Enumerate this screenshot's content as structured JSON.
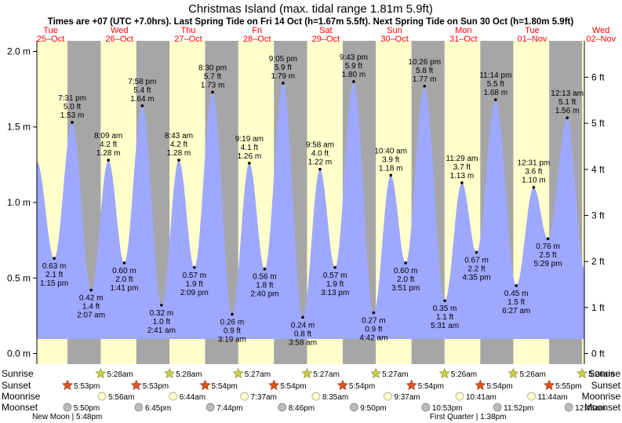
{
  "chart_data": {
    "type": "area",
    "title": "Christmas Island (max. tidal range 1.81m 5.9ft)",
    "subtitle": "Times are +07 (UTC +7.0hrs). Last Spring Tide on Fri 14 Oct (h=1.67m 5.5ft). Next Spring Tide on Sun 30 Oct (h=1.80m 5.9ft)",
    "ylim": [
      -0.07,
      2.07
    ],
    "left_ticks": [
      "0.0 m",
      "0.5 m",
      "1.0 m",
      "1.5 m",
      "2.0 m"
    ],
    "left_tick_values": [
      0,
      0.5,
      1.0,
      1.5,
      2.0
    ],
    "right_ticks": [
      "0 ft",
      "1 ft",
      "2 ft",
      "3 ft",
      "4 ft",
      "5 ft",
      "6 ft"
    ],
    "right_tick_values": [
      0,
      1,
      2,
      3,
      4,
      5,
      6
    ],
    "x_start_hour": 7.2,
    "x_end_hour": 198.2,
    "days": [
      {
        "dow": "Tue",
        "date": "25–Oct"
      },
      {
        "dow": "Wed",
        "date": "26–Oct"
      },
      {
        "dow": "Thu",
        "date": "27–Oct"
      },
      {
        "dow": "Fri",
        "date": "28–Oct"
      },
      {
        "dow": "Sat",
        "date": "29–Oct"
      },
      {
        "dow": "Sun",
        "date": "30–Oct"
      },
      {
        "dow": "Mon",
        "date": "31–Oct"
      },
      {
        "dow": "Tue",
        "date": "01–Nov"
      },
      {
        "dow": "Wed",
        "date": "02–Nov"
      }
    ],
    "curve_start": {
      "hour": 7.2,
      "m": 1.27
    },
    "curve_end": {
      "hour": 198.2,
      "m": 0.56
    },
    "tides": [
      {
        "hour": 13.25,
        "m": 0.63,
        "time": "1:15 pm",
        "ft": "2.1 ft",
        "mlabel": "0.63 m",
        "type": "low"
      },
      {
        "hour": 19.52,
        "m": 1.53,
        "time": "7:31 pm",
        "ft": "5.0 ft",
        "mlabel": "1.53 m",
        "type": "high"
      },
      {
        "hour": 26.12,
        "m": 0.42,
        "time": "2:07 am",
        "ft": "1.4 ft",
        "mlabel": "0.42 m",
        "type": "low"
      },
      {
        "hour": 32.15,
        "m": 1.28,
        "time": "8:09 am",
        "ft": "4.2 ft",
        "mlabel": "1.28 m",
        "type": "high"
      },
      {
        "hour": 37.68,
        "m": 0.6,
        "time": "1:41 pm",
        "ft": "2.0 ft",
        "mlabel": "0.60 m",
        "type": "low"
      },
      {
        "hour": 43.97,
        "m": 1.64,
        "time": "7:58 pm",
        "ft": "5.4 ft",
        "mlabel": "1.64 m",
        "type": "high"
      },
      {
        "hour": 50.68,
        "m": 0.32,
        "time": "2:41 am",
        "ft": "1.0 ft",
        "mlabel": "0.32 m",
        "type": "low"
      },
      {
        "hour": 56.72,
        "m": 1.28,
        "time": "8:43 am",
        "ft": "4.2 ft",
        "mlabel": "1.28 m",
        "type": "high"
      },
      {
        "hour": 62.15,
        "m": 0.57,
        "time": "2:09 pm",
        "ft": "1.9 ft",
        "mlabel": "0.57 m",
        "type": "low"
      },
      {
        "hour": 68.5,
        "m": 1.73,
        "time": "8:30 pm",
        "ft": "5.7 ft",
        "mlabel": "1.73 m",
        "type": "high"
      },
      {
        "hour": 75.32,
        "m": 0.26,
        "time": "3:19 am",
        "ft": "0.9 ft",
        "mlabel": "0.26 m",
        "type": "low"
      },
      {
        "hour": 81.32,
        "m": 1.26,
        "time": "9:19 am",
        "ft": "4.1 ft",
        "mlabel": "1.26 m",
        "type": "high"
      },
      {
        "hour": 86.67,
        "m": 0.56,
        "time": "2:40 pm",
        "ft": "1.8 ft",
        "mlabel": "0.56 m",
        "type": "low"
      },
      {
        "hour": 93.08,
        "m": 1.79,
        "time": "9:05 pm",
        "ft": "5.9 ft",
        "mlabel": "1.79 m",
        "type": "high"
      },
      {
        "hour": 99.97,
        "m": 0.24,
        "time": "3:58 am",
        "ft": "0.8 ft",
        "mlabel": "0.24 m",
        "type": "low"
      },
      {
        "hour": 105.97,
        "m": 1.22,
        "time": "9:58 am",
        "ft": "4.0 ft",
        "mlabel": "1.22 m",
        "type": "high"
      },
      {
        "hour": 111.22,
        "m": 0.57,
        "time": "3:13 pm",
        "ft": "1.9 ft",
        "mlabel": "0.57 m",
        "type": "low"
      },
      {
        "hour": 117.72,
        "m": 1.8,
        "time": "9:43 pm",
        "ft": "5.9 ft",
        "mlabel": "1.80 m",
        "type": "high"
      },
      {
        "hour": 124.7,
        "m": 0.27,
        "time": "4:42 am",
        "ft": "0.9 ft",
        "mlabel": "0.27 m",
        "type": "low"
      },
      {
        "hour": 130.67,
        "m": 1.18,
        "time": "10:40 am",
        "ft": "3.9 ft",
        "mlabel": "1.18 m",
        "type": "high"
      },
      {
        "hour": 135.85,
        "m": 0.6,
        "time": "3:51 pm",
        "ft": "2.0 ft",
        "mlabel": "0.60 m",
        "type": "low"
      },
      {
        "hour": 142.43,
        "m": 1.77,
        "time": "10:26 pm",
        "ft": "5.8 ft",
        "mlabel": "1.77 m",
        "type": "high"
      },
      {
        "hour": 149.52,
        "m": 0.35,
        "time": "5:31 am",
        "ft": "1.1 ft",
        "mlabel": "0.35 m",
        "type": "low"
      },
      {
        "hour": 155.48,
        "m": 1.13,
        "time": "11:29 am",
        "ft": "3.7 ft",
        "mlabel": "1.13 m",
        "type": "high"
      },
      {
        "hour": 160.58,
        "m": 0.67,
        "time": "4:35 pm",
        "ft": "2.2 ft",
        "mlabel": "0.67 m",
        "type": "low"
      },
      {
        "hour": 167.23,
        "m": 1.68,
        "time": "11:14 pm",
        "ft": "5.5 ft",
        "mlabel": "1.68 m",
        "type": "high"
      },
      {
        "hour": 174.45,
        "m": 0.45,
        "time": "6:27 am",
        "ft": "1.5 ft",
        "mlabel": "0.45 m",
        "type": "low"
      },
      {
        "hour": 180.52,
        "m": 1.1,
        "time": "12:31 pm",
        "ft": "3.6 ft",
        "mlabel": "1.10 m",
        "type": "high"
      },
      {
        "hour": 185.48,
        "m": 0.76,
        "time": "5:29 pm",
        "ft": "2.5 ft",
        "mlabel": "0.76 m",
        "type": "low"
      },
      {
        "hour": 192.22,
        "m": 1.56,
        "time": "12:13 am",
        "ft": "5.1 ft",
        "mlabel": "1.56 m",
        "type": "high"
      }
    ],
    "row_labels": {
      "sunrise": "Sunrise",
      "sunset": "Sunset",
      "moonrise": "Moonrise",
      "moonset": "Moonset"
    },
    "sunrise": [
      {
        "hour": 29.47,
        "label": "5:28am"
      },
      {
        "hour": 53.47,
        "label": "5:28am"
      },
      {
        "hour": 77.45,
        "label": "5:27am"
      },
      {
        "hour": 101.45,
        "label": "5:27am"
      },
      {
        "hour": 125.45,
        "label": "5:27am"
      },
      {
        "hour": 149.43,
        "label": "5:26am"
      },
      {
        "hour": 173.43,
        "label": "5:26am"
      },
      {
        "hour": 197.43,
        "label": "5:26am"
      }
    ],
    "sunset": [
      {
        "hour": 17.88,
        "label": "5:53pm"
      },
      {
        "hour": 41.88,
        "label": "5:53pm"
      },
      {
        "hour": 65.9,
        "label": "5:54pm"
      },
      {
        "hour": 89.9,
        "label": "5:54pm"
      },
      {
        "hour": 113.9,
        "label": "5:54pm"
      },
      {
        "hour": 137.9,
        "label": "5:54pm"
      },
      {
        "hour": 161.9,
        "label": "5:54pm"
      },
      {
        "hour": 185.92,
        "label": "5:55pm"
      }
    ],
    "moonrise": [
      {
        "hour": 29.93,
        "label": "5:56am"
      },
      {
        "hour": 54.73,
        "label": "6:44am"
      },
      {
        "hour": 79.62,
        "label": "7:37am"
      },
      {
        "hour": 104.58,
        "label": "8:35am"
      },
      {
        "hour": 129.62,
        "label": "9:37am"
      },
      {
        "hour": 154.68,
        "label": "10:41am"
      },
      {
        "hour": 179.73,
        "label": "11:44am"
      }
    ],
    "moonset": [
      {
        "hour": 17.83,
        "label": "5:50pm"
      },
      {
        "hour": 42.75,
        "label": "6:45pm"
      },
      {
        "hour": 67.73,
        "label": "7:44pm"
      },
      {
        "hour": 92.77,
        "label": "8:46pm"
      },
      {
        "hour": 117.83,
        "label": "9:50pm"
      },
      {
        "hour": 142.88,
        "label": "10:53pm"
      },
      {
        "hour": 167.87,
        "label": "11:52pm"
      },
      {
        "hour": 192.77,
        "label": "12:46am"
      }
    ],
    "moon_phases": [
      {
        "hour": 17.8,
        "label": "New Moon | 5:48pm"
      },
      {
        "hour": 157.63,
        "label": "First Quarter | 1:38pm"
      }
    ],
    "colors": {
      "day": "#ffffcc",
      "night": "#a6a6a6",
      "water": "#9ea8ff",
      "date_text": "#ff0000",
      "sun": "#cccc44",
      "sunset": "#dd5522",
      "moonrise": "#ffffcc",
      "moonset": "#bbbbbb"
    }
  }
}
